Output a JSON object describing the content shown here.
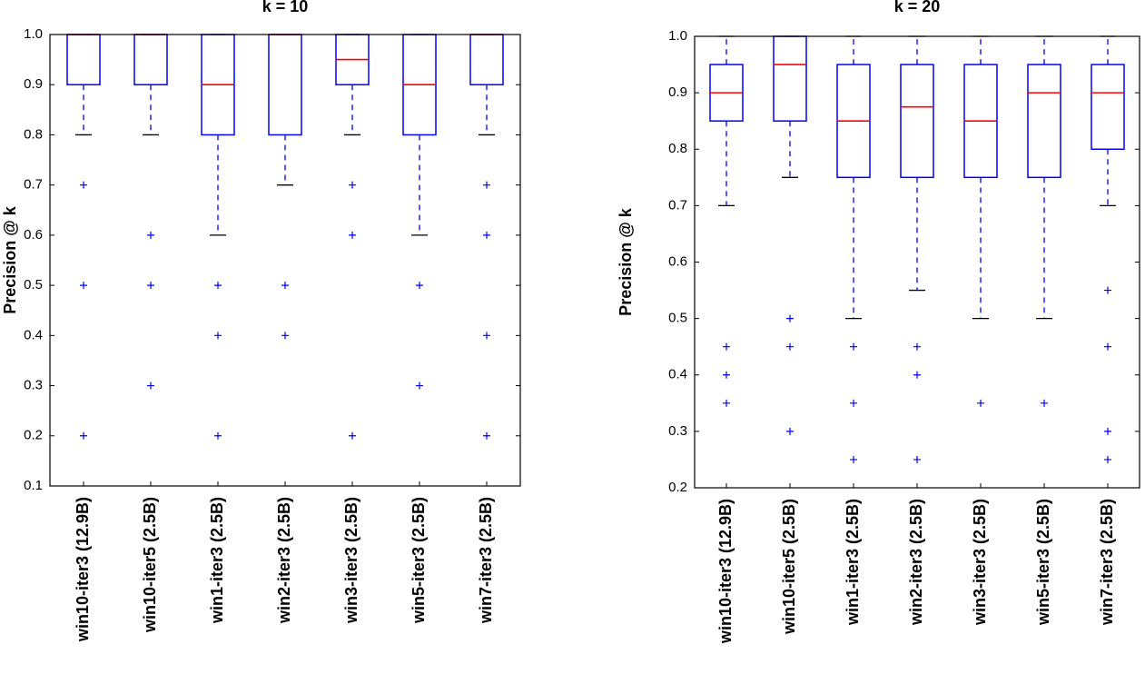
{
  "chart_data": [
    {
      "type": "box",
      "title": "k = 10",
      "y_label": "Precision @ k",
      "categories": [
        "win10-iter3 (12.9B)",
        "win10-iter5 (2.5B)",
        "win1-iter3 (2.5B)",
        "win2-iter3 (2.5B)",
        "win3-iter3 (2.5B)",
        "win5-iter3 (2.5B)",
        "win7-iter3 (2.5B)"
      ],
      "box_color": "#0000ff",
      "median_color": "#ff0000",
      "ylim": [
        0.1,
        1.0
      ],
      "yticks": [
        0.1,
        0.2,
        0.3,
        0.4,
        0.5,
        0.6,
        0.7,
        0.8,
        0.9,
        {
          "value": 1.0,
          "label": "1.0"
        }
      ],
      "boxes": [
        {
          "whislo": 0.8,
          "q1": 0.9,
          "med": 1.0,
          "q3": 1.0,
          "whishi": 1.0,
          "fliers": [
            0.7,
            0.5,
            0.2
          ]
        },
        {
          "whislo": 0.8,
          "q1": 0.9,
          "med": 1.0,
          "q3": 1.0,
          "whishi": 1.0,
          "fliers": [
            0.6,
            0.5,
            0.3
          ]
        },
        {
          "whislo": 0.6,
          "q1": 0.8,
          "med": 0.9,
          "q3": 1.0,
          "whishi": 1.0,
          "fliers": [
            0.5,
            0.4,
            0.2
          ]
        },
        {
          "whislo": 0.7,
          "q1": 0.8,
          "med": 1.0,
          "q3": 1.0,
          "whishi": 1.0,
          "fliers": [
            0.5,
            0.4
          ]
        },
        {
          "whislo": 0.8,
          "q1": 0.9,
          "med": 0.95,
          "q3": 1.0,
          "whishi": 1.0,
          "fliers": [
            0.7,
            0.6,
            0.2
          ]
        },
        {
          "whislo": 0.6,
          "q1": 0.8,
          "med": 0.9,
          "q3": 1.0,
          "whishi": 1.0,
          "fliers": [
            0.5,
            0.3
          ]
        },
        {
          "whislo": 0.8,
          "q1": 0.9,
          "med": 1.0,
          "q3": 1.0,
          "whishi": 1.0,
          "fliers": [
            0.7,
            0.6,
            0.4,
            0.2
          ]
        }
      ]
    },
    {
      "type": "box",
      "title": "k = 20",
      "y_label": "Precision @ k",
      "categories": [
        "win10-iter3 (12.9B)",
        "win10-iter5 (2.5B)",
        "win1-iter3 (2.5B)",
        "win2-iter3 (2.5B)",
        "win3-iter3 (2.5B)",
        "win5-iter3 (2.5B)",
        "win7-iter3 (2.5B)"
      ],
      "box_color": "#0000ff",
      "median_color": "#ff0000",
      "ylim": [
        0.2,
        1.0
      ],
      "yticks": [
        0.2,
        0.3,
        0.4,
        0.5,
        0.6,
        0.7,
        0.8,
        0.9,
        {
          "value": 1.0,
          "label": "1.0"
        }
      ],
      "boxes": [
        {
          "whislo": 0.7,
          "q1": 0.85,
          "med": 0.9,
          "q3": 0.95,
          "whishi": 1.0,
          "fliers": [
            0.45,
            0.4,
            0.35
          ]
        },
        {
          "whislo": 0.75,
          "q1": 0.85,
          "med": 0.95,
          "q3": 1.0,
          "whishi": 1.0,
          "fliers": [
            0.5,
            0.45,
            0.3
          ]
        },
        {
          "whislo": 0.5,
          "q1": 0.75,
          "med": 0.85,
          "q3": 0.95,
          "whishi": 1.0,
          "fliers": [
            0.45,
            0.35,
            0.25
          ]
        },
        {
          "whislo": 0.55,
          "q1": 0.75,
          "med": 0.875,
          "q3": 0.95,
          "whishi": 1.0,
          "fliers": [
            0.45,
            0.4,
            0.25
          ]
        },
        {
          "whislo": 0.5,
          "q1": 0.75,
          "med": 0.85,
          "q3": 0.95,
          "whishi": 1.0,
          "fliers": [
            0.35
          ]
        },
        {
          "whislo": 0.5,
          "q1": 0.75,
          "med": 0.9,
          "q3": 0.95,
          "whishi": 1.0,
          "fliers": [
            0.35
          ]
        },
        {
          "whislo": 0.7,
          "q1": 0.8,
          "med": 0.9,
          "q3": 0.95,
          "whishi": 1.0,
          "fliers": [
            0.55,
            0.45,
            0.3,
            0.25
          ]
        }
      ]
    }
  ]
}
